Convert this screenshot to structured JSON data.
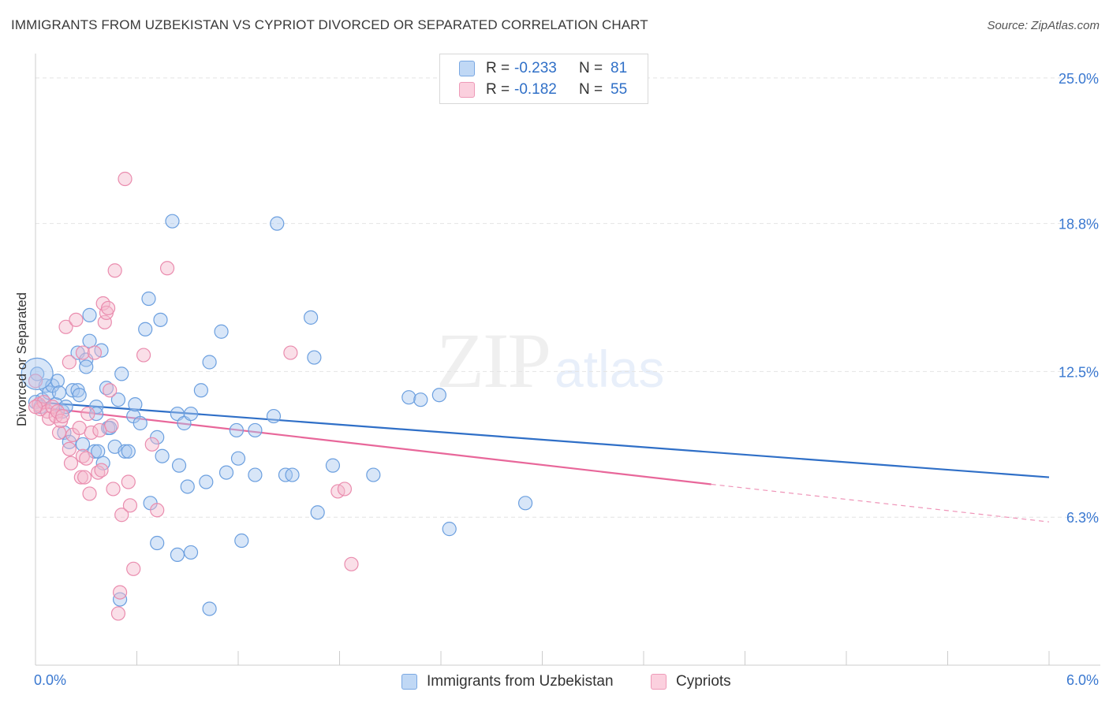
{
  "title": "IMMIGRANTS FROM UZBEKISTAN VS CYPRIOT DIVORCED OR SEPARATED CORRELATION CHART",
  "source": "Source: ZipAtlas.com",
  "watermark": {
    "zip": "ZIP",
    "atlas": "atlas"
  },
  "legend": {
    "rows": [
      {
        "r_label": "R =",
        "r_value": "-0.233",
        "n_label": "N =",
        "n_value": "81",
        "color": "#a8c8f0"
      },
      {
        "r_label": "R =",
        "r_value": "-0.182",
        "n_label": "N =",
        "n_value": "55",
        "color": "#f5b8cc"
      }
    ]
  },
  "bottom_legend": [
    {
      "label": "Immigrants from Uzbekistan",
      "color": "#a8c8f0"
    },
    {
      "label": "Cypriots",
      "color": "#f5b8cc"
    }
  ],
  "chart_data": {
    "type": "scatter",
    "title": "IMMIGRANTS FROM UZBEKISTAN VS CYPRIOT DIVORCED OR SEPARATED CORRELATION CHART",
    "xlabel": "",
    "ylabel": "Divorced or Separated",
    "xlim": [
      0,
      6.0
    ],
    "ylim": [
      0,
      25.8
    ],
    "x_tick_labels": [
      "0.0%",
      "6.0%"
    ],
    "y_ticks": [
      6.3,
      12.5,
      18.8,
      25.0
    ],
    "y_tick_labels": [
      "6.3%",
      "12.5%",
      "18.8%",
      "25.0%"
    ],
    "grid": true,
    "colors": {
      "blue": "#3a78d0",
      "pink": "#e8679a",
      "tick_label": "#3a78d0"
    },
    "series": [
      {
        "name": "Immigrants from Uzbekistan",
        "color": "#a8c8f0",
        "stroke": "#6b9fdf",
        "trend": {
          "x0": 0.0,
          "y0": 11.2,
          "x1": 6.0,
          "y1": 8.0,
          "color": "#2f6fc7"
        },
        "points": [
          [
            0.01,
            12.4
          ],
          [
            0.04,
            11.3
          ],
          [
            0.06,
            11.9
          ],
          [
            0.08,
            11.6
          ],
          [
            0.1,
            11.9
          ],
          [
            0.12,
            11.1
          ],
          [
            0.13,
            12.1
          ],
          [
            0.14,
            11.6
          ],
          [
            0.16,
            10.8
          ],
          [
            0.17,
            9.9
          ],
          [
            0.18,
            11.0
          ],
          [
            0.2,
            9.5
          ],
          [
            0.22,
            11.7
          ],
          [
            0.25,
            11.7
          ],
          [
            0.25,
            13.3
          ],
          [
            0.26,
            11.5
          ],
          [
            0.28,
            9.4
          ],
          [
            0.3,
            13.0
          ],
          [
            0.3,
            12.7
          ],
          [
            0.32,
            13.8
          ],
          [
            0.32,
            14.9
          ],
          [
            0.35,
            9.1
          ],
          [
            0.36,
            11.0
          ],
          [
            0.36,
            10.7
          ],
          [
            0.37,
            9.1
          ],
          [
            0.39,
            13.4
          ],
          [
            0.4,
            8.6
          ],
          [
            0.42,
            11.8
          ],
          [
            0.43,
            10.1
          ],
          [
            0.44,
            10.1
          ],
          [
            0.47,
            9.3
          ],
          [
            0.49,
            11.3
          ],
          [
            0.5,
            2.8
          ],
          [
            0.51,
            12.4
          ],
          [
            0.53,
            9.1
          ],
          [
            0.55,
            9.1
          ],
          [
            0.58,
            10.6
          ],
          [
            0.59,
            11.1
          ],
          [
            0.62,
            10.3
          ],
          [
            0.65,
            14.3
          ],
          [
            0.67,
            15.6
          ],
          [
            0.68,
            6.9
          ],
          [
            0.72,
            9.7
          ],
          [
            0.72,
            5.2
          ],
          [
            0.74,
            14.7
          ],
          [
            0.75,
            8.9
          ],
          [
            0.81,
            18.9
          ],
          [
            0.84,
            4.7
          ],
          [
            0.84,
            10.7
          ],
          [
            0.85,
            8.5
          ],
          [
            0.88,
            10.3
          ],
          [
            0.9,
            7.6
          ],
          [
            0.92,
            10.7
          ],
          [
            0.92,
            4.8
          ],
          [
            0.98,
            11.7
          ],
          [
            1.01,
            7.8
          ],
          [
            1.03,
            12.9
          ],
          [
            1.03,
            2.4
          ],
          [
            1.1,
            14.2
          ],
          [
            1.13,
            8.2
          ],
          [
            1.19,
            10.0
          ],
          [
            1.2,
            8.8
          ],
          [
            1.22,
            5.3
          ],
          [
            1.3,
            10.0
          ],
          [
            1.3,
            8.1
          ],
          [
            1.41,
            10.6
          ],
          [
            1.43,
            18.8
          ],
          [
            1.48,
            8.1
          ],
          [
            1.52,
            8.1
          ],
          [
            1.65,
            13.1
          ],
          [
            1.63,
            14.8
          ],
          [
            1.67,
            6.5
          ],
          [
            1.76,
            8.5
          ],
          [
            2.0,
            8.1
          ],
          [
            2.21,
            11.4
          ],
          [
            2.28,
            11.3
          ],
          [
            2.39,
            11.5
          ],
          [
            2.45,
            5.8
          ],
          [
            2.9,
            6.9
          ],
          [
            0.0,
            11.2
          ],
          [
            0.03,
            11.0
          ]
        ]
      },
      {
        "name": "Cypriots",
        "color": "#f5b8cc",
        "stroke": "#ea8cae",
        "trend": {
          "x0": 0.0,
          "y0": 11.0,
          "x1": 4.0,
          "y1": 7.7,
          "color": "#e8679a"
        },
        "trend_dashed": {
          "x0": 4.0,
          "y0": 7.7,
          "x1": 6.0,
          "y1": 6.1
        },
        "points": [
          [
            0.0,
            12.1
          ],
          [
            0.02,
            11.1
          ],
          [
            0.03,
            10.9
          ],
          [
            0.05,
            11.2
          ],
          [
            0.07,
            10.8
          ],
          [
            0.08,
            10.5
          ],
          [
            0.1,
            11.0
          ],
          [
            0.12,
            10.6
          ],
          [
            0.13,
            10.8
          ],
          [
            0.14,
            9.9
          ],
          [
            0.15,
            10.4
          ],
          [
            0.16,
            10.6
          ],
          [
            0.18,
            14.4
          ],
          [
            0.2,
            12.9
          ],
          [
            0.2,
            9.2
          ],
          [
            0.21,
            8.6
          ],
          [
            0.22,
            9.8
          ],
          [
            0.24,
            14.7
          ],
          [
            0.26,
            10.1
          ],
          [
            0.27,
            8.0
          ],
          [
            0.28,
            8.9
          ],
          [
            0.28,
            13.3
          ],
          [
            0.29,
            8.0
          ],
          [
            0.3,
            8.8
          ],
          [
            0.31,
            10.7
          ],
          [
            0.32,
            7.3
          ],
          [
            0.33,
            9.9
          ],
          [
            0.35,
            13.3
          ],
          [
            0.37,
            8.2
          ],
          [
            0.38,
            10.0
          ],
          [
            0.39,
            8.3
          ],
          [
            0.4,
            15.4
          ],
          [
            0.41,
            14.6
          ],
          [
            0.42,
            15.0
          ],
          [
            0.43,
            15.2
          ],
          [
            0.44,
            11.7
          ],
          [
            0.45,
            10.2
          ],
          [
            0.46,
            7.5
          ],
          [
            0.47,
            16.8
          ],
          [
            0.49,
            2.2
          ],
          [
            0.5,
            3.1
          ],
          [
            0.51,
            6.4
          ],
          [
            0.53,
            20.7
          ],
          [
            0.55,
            7.8
          ],
          [
            0.56,
            6.8
          ],
          [
            0.58,
            4.1
          ],
          [
            0.64,
            13.2
          ],
          [
            0.69,
            9.4
          ],
          [
            0.72,
            6.6
          ],
          [
            0.78,
            16.9
          ],
          [
            1.51,
            13.3
          ],
          [
            1.79,
            7.4
          ],
          [
            1.83,
            7.5
          ],
          [
            1.87,
            4.3
          ],
          [
            0.0,
            11.0
          ]
        ]
      }
    ]
  }
}
